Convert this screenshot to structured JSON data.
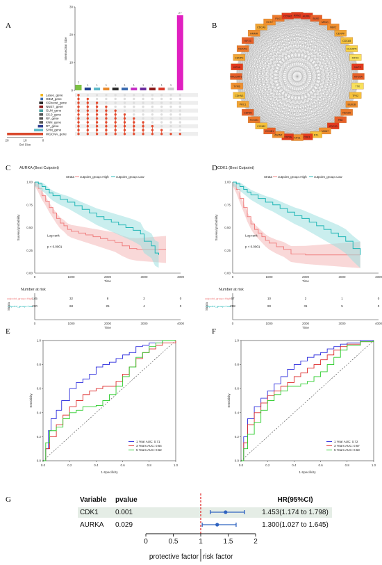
{
  "panels": {
    "A": "A",
    "B": "B",
    "C": "C",
    "D": "D",
    "E": "E",
    "F": "F",
    "G": "G"
  },
  "chart_data": [
    {
      "type": "bar",
      "panel": "A",
      "ylabel": "Intersection Size",
      "xlabel": "Set Size",
      "ylim": [
        0,
        30
      ],
      "yticks": [
        "0",
        "10",
        "20",
        "30"
      ],
      "set_size_ticks": [
        "20",
        "10",
        "0"
      ],
      "sets": [
        "Lasso_gene",
        "GBM_gene",
        "XGboost_gene",
        "NNET_gene",
        "GLM_gene",
        "C5.0_gene",
        "RF_gene",
        "KNN_gene",
        "DT_gene",
        "SVM_gene",
        "WGCNA_gene"
      ],
      "set_colors": [
        "#f2b824",
        "#3d6fb5",
        "#222222",
        "#8b1a1a",
        "#4aa3a3",
        "#555555",
        "#555555",
        "#555555",
        "#2d3e8f",
        "#5bb8c8",
        "#d9482b"
      ],
      "set_sizes": [
        2,
        2,
        3,
        3,
        3,
        3,
        3,
        3,
        4,
        7,
        28
      ],
      "intersections": [
        {
          "value": 2,
          "color": "#7cc242",
          "members": [
            0,
            1,
            2,
            3,
            4,
            5,
            6,
            7,
            8,
            9,
            10
          ]
        },
        {
          "value": 1,
          "color": "#1f3f8f",
          "members": [
            1,
            2,
            3,
            4,
            5,
            6,
            7,
            8,
            9,
            10
          ]
        },
        {
          "value": 1,
          "color": "#5bb8c8",
          "members": [
            2,
            3,
            4,
            5,
            6,
            7,
            8,
            9,
            10
          ]
        },
        {
          "value": 1,
          "color": "#e9892b",
          "members": [
            3,
            4,
            5,
            6,
            7,
            8,
            9,
            10
          ]
        },
        {
          "value": 1,
          "color": "#2b2b2b",
          "members": [
            4,
            5,
            6,
            7,
            8,
            9,
            10
          ]
        },
        {
          "value": 1,
          "color": "#3a6ab0",
          "members": [
            5,
            6,
            7,
            8,
            9,
            10
          ]
        },
        {
          "value": 1,
          "color": "#c62ec6",
          "members": [
            6,
            7,
            8,
            9,
            10
          ]
        },
        {
          "value": 1,
          "color": "#6a2b9e",
          "members": [
            7,
            8,
            9,
            10
          ]
        },
        {
          "value": 1,
          "color": "#8b1a1a",
          "members": [
            8,
            9,
            10
          ]
        },
        {
          "value": 1,
          "color": "#d93a2b",
          "members": [
            9,
            10
          ]
        },
        {
          "value": 1,
          "color": "#cccccc",
          "members": [
            10
          ]
        },
        {
          "value": 27,
          "color": "#e020c0",
          "members": [
            10
          ]
        }
      ],
      "bar_labels": [
        "2",
        "1",
        "1",
        "1",
        "1",
        "1",
        "1",
        "1",
        "1",
        "1",
        "1",
        "27"
      ]
    },
    {
      "type": "network",
      "panel": "B",
      "nodes": [
        "RRM2",
        "AURKA",
        "BUB1",
        "MELK",
        "NEK2",
        "CENPF",
        "CDCA5",
        "DLGAP5",
        "KIF2C",
        "NUF2",
        "KIF20A",
        "TTK",
        "TPX2",
        "BUB1B",
        "NDC80",
        "PBK",
        "CDC20",
        "MKI67",
        "DTL",
        "CDK1",
        "KIF11",
        "TOP2A",
        "ZWINT",
        "CCNB1",
        "CCNB2",
        "FOXM1",
        "CEP55",
        "PRC1",
        "CDKN3",
        "TYMS",
        "RACGAP1",
        "KIF4A",
        "CENPE",
        "NCAPG",
        "KIF23",
        "HMMR",
        "CDCA8",
        "ECT2",
        "PLK1",
        "CCNA2"
      ],
      "node_colors": [
        "#e23a1e",
        "#e23a1e",
        "#e8602a",
        "#ec7a2c",
        "#f09030",
        "#f2a633",
        "#f5c03a",
        "#f7d54a",
        "#f8e15c",
        "#e23a1e",
        "#e8602a",
        "#f8e15c",
        "#f5c03a",
        "#f09030",
        "#ec7a2c",
        "#e8602a",
        "#e23a1e",
        "#f09030",
        "#f5c03a",
        "#e23a1e",
        "#f09030",
        "#e23a1e",
        "#f09030",
        "#e8602a",
        "#f5c03a",
        "#ec7a2c",
        "#e8602a",
        "#f2a633",
        "#f5c03a",
        "#f09030",
        "#e8602a",
        "#e23a1e",
        "#f2a633",
        "#ec7a2c",
        "#e8602a",
        "#f09030",
        "#f2a633",
        "#f09030",
        "#ec7a2c",
        "#e23a1e"
      ]
    },
    {
      "type": "line",
      "panel": "C",
      "title": "AURKA  (Best Cutpoint)",
      "legend_title": "Strata",
      "series": [
        {
          "name": "cutpoint_group=High",
          "color": "#f08080",
          "fill": "#f4b8b8",
          "x": [
            0,
            100,
            200,
            300,
            400,
            500,
            600,
            700,
            800,
            900,
            1000,
            1200,
            1400,
            1600,
            1800,
            2000,
            2200,
            2400,
            2600,
            2800,
            3000,
            3200,
            3600
          ],
          "y": [
            1.0,
            0.93,
            0.85,
            0.79,
            0.72,
            0.66,
            0.6,
            0.55,
            0.52,
            0.48,
            0.46,
            0.44,
            0.42,
            0.4,
            0.38,
            0.36,
            0.34,
            0.3,
            0.27,
            0.26,
            0.26,
            0.26,
            0.26
          ]
        },
        {
          "name": "cutpoint_group=Low",
          "color": "#1fb5b5",
          "fill": "#9fe0e0",
          "x": [
            0,
            100,
            200,
            300,
            400,
            500,
            700,
            900,
            1100,
            1300,
            1500,
            1700,
            1900,
            2100,
            2300,
            2500,
            2700,
            2900,
            3000,
            3200,
            3300,
            3400
          ],
          "y": [
            1.0,
            0.98,
            0.95,
            0.92,
            0.88,
            0.85,
            0.81,
            0.78,
            0.74,
            0.7,
            0.66,
            0.62,
            0.59,
            0.56,
            0.53,
            0.5,
            0.47,
            0.43,
            0.35,
            0.3,
            0.22,
            0.2
          ]
        }
      ],
      "xlabel": "Time",
      "ylabel": "Survival probability",
      "xlim": [
        0,
        4000
      ],
      "ylim": [
        0,
        1
      ],
      "xticks": [
        "0",
        "1000",
        "2000",
        "3000",
        "4000"
      ],
      "yticks": [
        "0.00",
        "0.25",
        "0.50",
        "0.75",
        "1.00"
      ],
      "annotation": [
        "Log-rank",
        "p < 0.0001"
      ],
      "risk_title": "Number at risk",
      "risk_ylabel": "Strata",
      "risk_rows": [
        {
          "label": "cutpoint_group=High",
          "color": "#f08080",
          "values": [
            "145",
            "32",
            "8",
            "2",
            "0"
          ]
        },
        {
          "label": "cutpoint_group=Low",
          "color": "#1fb5b5",
          "values": [
            "220",
            "68",
            "25",
            "4",
            "0"
          ]
        }
      ]
    },
    {
      "type": "line",
      "panel": "D",
      "title": "CDK1  (Best Cutpoint)",
      "legend_title": "Strata",
      "series": [
        {
          "name": "cutpoint_group=High",
          "color": "#f08080",
          "fill": "#f4b8b8",
          "x": [
            0,
            100,
            200,
            300,
            400,
            500,
            600,
            700,
            800,
            900,
            1000,
            1200,
            1400,
            1600,
            2000,
            2500,
            3000,
            3500
          ],
          "y": [
            1.0,
            0.92,
            0.82,
            0.72,
            0.62,
            0.54,
            0.48,
            0.44,
            0.4,
            0.36,
            0.33,
            0.29,
            0.26,
            0.21,
            0.2,
            0.2,
            0.2,
            0.2
          ]
        },
        {
          "name": "cutpoint_group=Low",
          "color": "#1fb5b5",
          "fill": "#9fe0e0",
          "x": [
            0,
            100,
            200,
            300,
            400,
            500,
            700,
            900,
            1100,
            1300,
            1500,
            1700,
            1900,
            2100,
            2300,
            2500,
            2700,
            2900,
            3100,
            3300,
            3500
          ],
          "y": [
            1.0,
            0.98,
            0.95,
            0.92,
            0.89,
            0.86,
            0.82,
            0.78,
            0.75,
            0.71,
            0.67,
            0.63,
            0.6,
            0.56,
            0.52,
            0.48,
            0.44,
            0.4,
            0.35,
            0.27,
            0.2
          ]
        }
      ],
      "xlabel": "Time",
      "ylabel": "Survival probability",
      "xlim": [
        0,
        4000
      ],
      "ylim": [
        0,
        1
      ],
      "xticks": [
        "0",
        "1000",
        "2000",
        "3000",
        "4000"
      ],
      "yticks": [
        "0.00",
        "0.25",
        "0.50",
        "0.75",
        "1.00"
      ],
      "annotation": [
        "Log-rank",
        "p < 0.0001"
      ],
      "risk_title": "Number at risk",
      "risk_ylabel": "Strata",
      "risk_rows": [
        {
          "label": "cutpoint_group=High",
          "color": "#f08080",
          "values": [
            "67",
            "10",
            "2",
            "1",
            "0"
          ]
        },
        {
          "label": "cutpoint_group=Low",
          "color": "#1fb5b5",
          "values": [
            "298",
            "90",
            "31",
            "5",
            "0"
          ]
        }
      ]
    },
    {
      "type": "line",
      "panel": "E",
      "xlabel": "1-Specificity",
      "ylabel": "Sensitivity",
      "xlim": [
        0,
        1
      ],
      "ylim": [
        0,
        1
      ],
      "xticks": [
        "0.0",
        "0.2",
        "0.4",
        "0.6",
        "0.8",
        "1.0"
      ],
      "yticks": [
        "0.0",
        "0.2",
        "0.4",
        "0.6",
        "0.8",
        "1.0"
      ],
      "series": [
        {
          "name": "1 Year AUC: 0.71",
          "color": "#2b2bdd",
          "x": [
            0,
            0.02,
            0.04,
            0.06,
            0.1,
            0.14,
            0.2,
            0.25,
            0.3,
            0.35,
            0.4,
            0.45,
            0.5,
            0.55,
            0.6,
            0.65,
            0.7,
            0.75,
            0.8,
            0.9,
            1.0
          ],
          "y": [
            0,
            0.1,
            0.25,
            0.35,
            0.42,
            0.5,
            0.6,
            0.65,
            0.68,
            0.72,
            0.78,
            0.8,
            0.82,
            0.85,
            0.88,
            0.9,
            0.95,
            0.96,
            0.98,
            1.0,
            1.0
          ]
        },
        {
          "name": "3 Years AUC: 0.64",
          "color": "#dd2b2b",
          "x": [
            0,
            0.02,
            0.05,
            0.1,
            0.15,
            0.2,
            0.25,
            0.3,
            0.35,
            0.4,
            0.45,
            0.5,
            0.55,
            0.6,
            0.65,
            0.7,
            0.75,
            0.8,
            0.85,
            0.9,
            1.0
          ],
          "y": [
            0,
            0.1,
            0.2,
            0.3,
            0.38,
            0.45,
            0.5,
            0.55,
            0.58,
            0.6,
            0.62,
            0.62,
            0.66,
            0.72,
            0.78,
            0.85,
            0.9,
            0.93,
            0.96,
            0.98,
            1.0
          ]
        },
        {
          "name": "5 Years AUC: 0.62",
          "color": "#2bcc2b",
          "x": [
            0,
            0.02,
            0.05,
            0.1,
            0.15,
            0.2,
            0.25,
            0.3,
            0.35,
            0.4,
            0.45,
            0.5,
            0.55,
            0.6,
            0.65,
            0.7,
            0.75,
            0.8,
            0.85,
            0.9,
            1.0
          ],
          "y": [
            0,
            0.15,
            0.25,
            0.28,
            0.35,
            0.4,
            0.42,
            0.45,
            0.45,
            0.46,
            0.5,
            0.55,
            0.62,
            0.7,
            0.78,
            0.86,
            0.9,
            0.95,
            0.98,
            1.0,
            1.0
          ]
        }
      ]
    },
    {
      "type": "line",
      "panel": "F",
      "xlabel": "1-Specificity",
      "ylabel": "Sensitivity",
      "xlim": [
        0,
        1
      ],
      "ylim": [
        0,
        1
      ],
      "xticks": [
        "0.0",
        "0.2",
        "0.4",
        "0.6",
        "0.8",
        "1.0"
      ],
      "yticks": [
        "0.0",
        "0.2",
        "0.4",
        "0.6",
        "0.8",
        "1.0"
      ],
      "series": [
        {
          "name": "1 Year AUC: 0.72",
          "color": "#2b2bdd",
          "x": [
            0,
            0.02,
            0.05,
            0.1,
            0.15,
            0.2,
            0.25,
            0.3,
            0.35,
            0.4,
            0.45,
            0.5,
            0.55,
            0.6,
            0.65,
            0.7,
            0.75,
            0.8,
            0.9,
            1.0
          ],
          "y": [
            0,
            0.2,
            0.35,
            0.45,
            0.52,
            0.58,
            0.64,
            0.7,
            0.76,
            0.8,
            0.83,
            0.86,
            0.88,
            0.9,
            0.93,
            0.95,
            0.97,
            0.98,
            1.0,
            1.0
          ]
        },
        {
          "name": "3 Years AUC: 0.67",
          "color": "#dd2b2b",
          "x": [
            0,
            0.02,
            0.05,
            0.1,
            0.15,
            0.2,
            0.25,
            0.3,
            0.35,
            0.4,
            0.45,
            0.5,
            0.55,
            0.6,
            0.65,
            0.7,
            0.75,
            0.8,
            0.9,
            1.0
          ],
          "y": [
            0,
            0.15,
            0.3,
            0.4,
            0.48,
            0.54,
            0.58,
            0.62,
            0.65,
            0.7,
            0.73,
            0.77,
            0.8,
            0.84,
            0.88,
            0.92,
            0.95,
            0.97,
            0.99,
            1.0
          ]
        },
        {
          "name": "5 Years AUC: 0.63",
          "color": "#2bcc2b",
          "x": [
            0,
            0.02,
            0.05,
            0.1,
            0.15,
            0.2,
            0.25,
            0.3,
            0.35,
            0.4,
            0.45,
            0.5,
            0.55,
            0.6,
            0.65,
            0.7,
            0.75,
            0.8,
            0.9,
            1.0
          ],
          "y": [
            0,
            0.1,
            0.22,
            0.32,
            0.42,
            0.5,
            0.55,
            0.58,
            0.62,
            0.62,
            0.64,
            0.66,
            0.7,
            0.74,
            0.8,
            0.86,
            0.92,
            0.96,
            0.99,
            1.0
          ]
        }
      ]
    },
    {
      "type": "table",
      "panel": "G",
      "headers": [
        "Variable",
        "pvalue",
        "HR(95%CI)"
      ],
      "rows": [
        {
          "variable": "CDK1",
          "pvalue": "0.001",
          "hr": 1.453,
          "lo": 1.174,
          "hi": 1.798,
          "hr_text": "1.453(1.174 to 1.798)"
        },
        {
          "variable": "AURKA",
          "pvalue": "0.029",
          "hr": 1.3,
          "lo": 1.027,
          "hi": 1.645,
          "hr_text": "1.300(1.027 to 1.645)"
        }
      ],
      "xlim": [
        0,
        2
      ],
      "xticks": [
        "0",
        "0.5",
        "1",
        "1.5",
        "2"
      ],
      "left_label": "protective factor",
      "right_label": "risk factor"
    }
  ]
}
